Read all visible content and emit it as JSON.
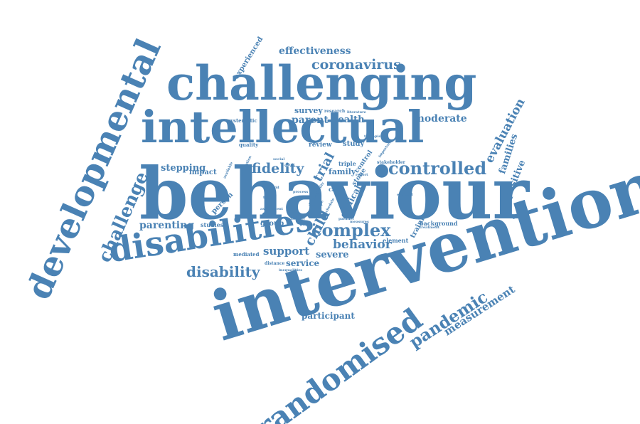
{
  "colors": {
    "background": "#ffffff",
    "word": "#4a82b4"
  },
  "words": {
    "behaviour": "behaviour",
    "intervention": "intervention",
    "intellectual": "intellectual",
    "challenging": "challenging",
    "developmental": "developmental",
    "disabilities": "disabilities",
    "randomised": "randomised",
    "controlled": "controlled",
    "challenge": "challenge",
    "disability": "disability",
    "complex": "complex",
    "fidelity": "fidelity",
    "pandemic": "pandemic",
    "measurement": "measurement",
    "coronavirus": "coronavirus",
    "effectiveness": "effectiveness",
    "evaluation": "evaluation",
    "families": "families",
    "positive": "positive",
    "behavior": "behavior",
    "support": "support",
    "severe": "severe",
    "service": "service",
    "parenting": "parenting",
    "stepping": "stepping",
    "participant": "participant",
    "moderate": "moderate",
    "parent": "parent",
    "health": "health",
    "survey": "survey",
    "study": "study",
    "review": "review",
    "trial": "trial",
    "family": "family",
    "child": "child",
    "clinical": "clinical",
    "impact": "impact",
    "person": "person",
    "group": "group",
    "studies": "studies",
    "mediated": "mediated",
    "quality": "quality",
    "systematic": "systematic",
    "experienced": "experienced",
    "training": "training",
    "background": "background",
    "element": "element",
    "stone": "stone",
    "care": "care",
    "triple": "triple",
    "staff": "staff",
    "research": "research",
    "literature": "literature",
    "stakeholder": "stakeholder",
    "control": "control",
    "distance": "distance",
    "inequalities": "inequalities",
    "england": "england",
    "therapist": "therapist",
    "population": "population",
    "available": "available",
    "adult": "adult",
    "social": "social",
    "strategy": "strategy",
    "parallel": "parallel",
    "measures": "measures",
    "schedule": "schedule",
    "treatment": "treatment",
    "poverty": "poverty",
    "report": "report",
    "tool": "tool",
    "assessment": "assessment",
    "covid": "covid",
    "process": "process",
    "feasibility": "feasibility",
    "important": "important"
  }
}
